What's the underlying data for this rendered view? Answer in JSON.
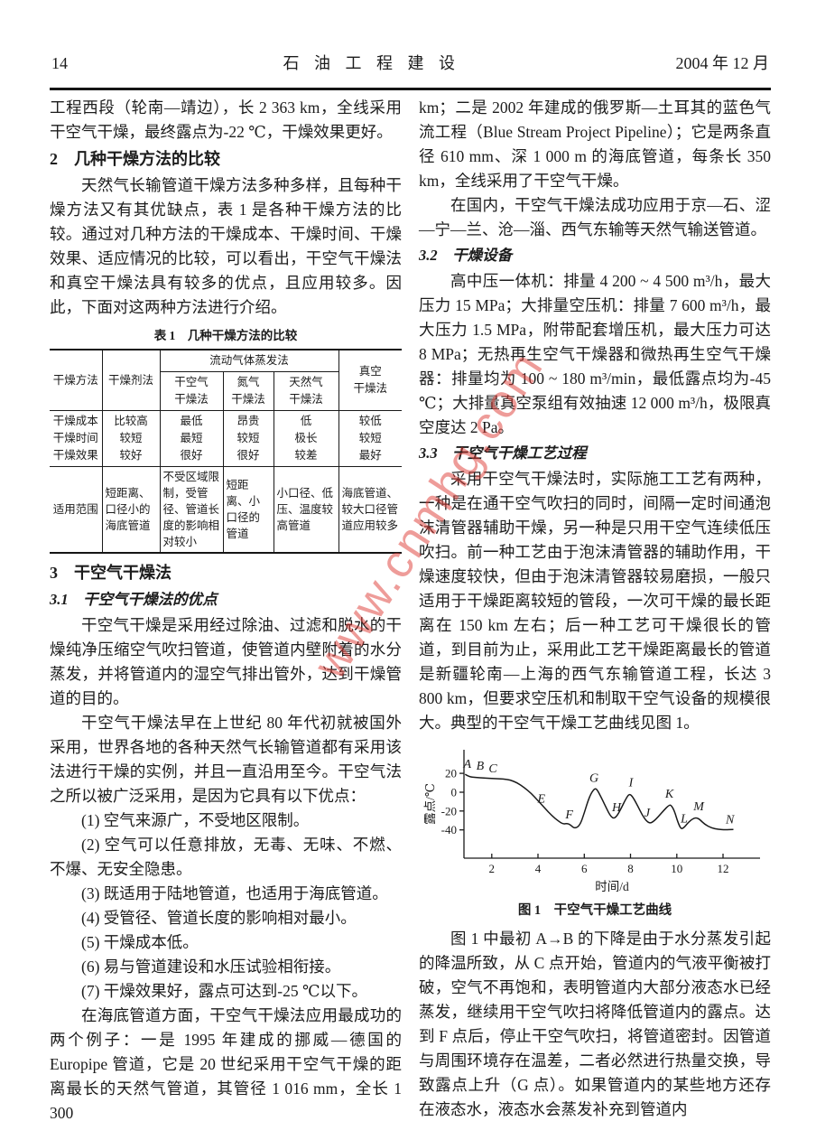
{
  "header": {
    "page_number": "14",
    "journal_title": "石 油 工 程 建 设",
    "issue_date": "2004 年 12 月"
  },
  "watermark": "www.cnmhg.com",
  "left_column": {
    "p_intro": "工程西段（轮南—靖边），长 2 363 km，全线采用干空气干燥，最终露点为-22 ℃，干燥效果更好。",
    "section2_heading": "2　几种干燥方法的比较",
    "p_section2": "天然气长输管道干燥方法多种多样，且每种干燥方法又有其优缺点，表 1 是各种干燥方法的比较。通过对几种方法的干燥成本、干燥时间、干燥效果、适应情况的比较，可以看出，干空气干燥法和真空干燥法具有较多的优点，且应用较多。因此，下面对这两种方法进行介绍。",
    "table": {
      "title": "表 1　几种干燥方法的比较",
      "method_header": "干燥方法",
      "desiccant_header": "干燥剂法",
      "group_header": "流动气体蒸发法",
      "sub_headers": [
        "干空气\n干燥法",
        "氮气\n干燥法",
        "天然气\n干燥法"
      ],
      "vacuum_header": "真空\n干燥法",
      "metric_rows": [
        {
          "label": "干燥成本",
          "values": [
            "比较高",
            "最低",
            "昂贵",
            "低",
            "较低"
          ]
        },
        {
          "label": "干燥时间",
          "values": [
            "较短",
            "最短",
            "较短",
            "极长",
            "较短"
          ]
        },
        {
          "label": "干燥效果",
          "values": [
            "较好",
            "很好",
            "很好",
            "较差",
            "最好"
          ]
        }
      ],
      "scope_row": {
        "label": "适用范围",
        "values": [
          "短距离、口径小的海底管道",
          "不受区域限制，受管径、管道长度的影响相对较小",
          "短距离、小口径的管道",
          "小口径、低压、温度较高管道",
          "海底管道、较大口径管道应用较多"
        ]
      }
    },
    "section3_heading": "3　干空气干燥法",
    "section31_heading": "3.1　干空气干燥法的优点",
    "p_31a": "干空气干燥是采用经过除油、过滤和脱水的干燥纯净压缩空气吹扫管道，使管道内壁附着的水分蒸发，并将管道内的湿空气排出管外，达到干燥管道的目的。",
    "p_31b": "干空气干燥法早在上世纪 80 年代初就被国外采用，世界各地的各种天然气长输管道都有采用该法进行干燥的实例，并且一直沿用至今。干空气法之所以被广泛采用，是因为它具有以下优点：",
    "advantages": [
      "(1) 空气来源广，不受地区限制。",
      "(2) 空气可以任意排放，无毒、无味、不燃、不爆、无安全隐患。",
      "(3) 既适用于陆地管道，也适用于海底管道。",
      "(4) 受管径、管道长度的影响相对最小。",
      "(5) 干燥成本低。",
      "(6) 易与管道建设和水压试验相衔接。",
      "(7) 干燥效果好，露点可达到-25 ℃以下。"
    ],
    "p_31c": "在海底管道方面，干空气干燥法应用最成功的两个例子：一是 1995 年建成的挪威—德国的 Europipe 管道，它是 20 世纪采用干空气干燥的距离最长的天然气管道，其管径 1 016 mm，全长 1 300"
  },
  "right_column": {
    "p_cont": "km；二是 2002 年建成的俄罗斯—土耳其的蓝色气流工程（Blue Stream Project Pipeline）；它是两条直径 610 mm、深 1 000 m 的海底管道，每条长 350 km，全线采用了干空气干燥。",
    "p_domestic": "在国内，干空气干燥法成功应用于京—石、涩—宁—兰、沧—淄、西气东输等天然气输送管道。",
    "section32_heading": "3.2　干燥设备",
    "p_equipment": "高中压一体机：排量 4 200 ~ 4 500 m³/h，最大压力 15 MPa；大排量空压机：排量 7 600 m³/h，最大压力 1.5 MPa，附带配套增压机，最大压力可达 8 MPa；无热再生空气干燥器和微热再生空气干燥器：排量均为 100 ~ 180 m³/min，最低露点均为-45 ℃；大排量真空泵组有效抽速 12 000 m³/h，极限真空度达 2 Pa。",
    "section33_heading": "3.3　干空气干燥工艺过程",
    "p_process": "采用干空气干燥法时，实际施工工艺有两种，一种是在通干空气吹扫的同时，间隔一定时间通泡沫清管器辅助干燥，另一种是只用干空气连续低压吹扫。前一种工艺由于泡沫清管器的辅助作用，干燥速度较快，但由于泡沫清管器较易磨损，一般只适用于干燥距离较短的管段，一次可干燥的最长距离在 150 km 左右；后一种工艺可干燥很长的管道，到目前为止，采用此工艺干燥距离最长的管道是新疆轮南—上海的西气东输管道工程，长达 3 800 km，但要求空压机和制取干空气设备的规模很大。典型的干空气干燥工艺曲线见图 1。",
    "p_figure_discussion": "图 1 中最初 A→B 的下降是由于水分蒸发引起的降温所致，从 C 点开始，管道内的气液平衡被打破，空气不再饱和，表明管道内大部分液态水已经蒸发，继续用干空气吹扫将降低管道内的露点。达到 F 点后，停止干空气吹扫，将管道密封。因管道与周围环境存在温差，二者必然进行热量交换，导致露点上升（G 点）。如果管道内的某些地方还存在液态水，液态水会蒸发补充到管道内"
  },
  "chart_data": {
    "type": "line",
    "title": "图 1　干空气干燥工艺曲线",
    "xlabel": "时间/d",
    "ylabel": "露点/℃",
    "xlim": [
      0.8,
      13.6
    ],
    "ylim": [
      -70,
      45
    ],
    "xticks": [
      2,
      4,
      6,
      8,
      10,
      12
    ],
    "yticks": [
      20,
      0,
      -20,
      -40
    ],
    "grid": false,
    "legend": "none",
    "series": [
      {
        "name": "露点曲线",
        "points": [
          [
            0.85,
            19
          ],
          [
            1.0,
            16.5
          ],
          [
            1.3,
            15.5
          ],
          [
            1.7,
            15
          ],
          [
            2.1,
            14.5
          ],
          [
            2.5,
            14
          ],
          [
            2.8,
            13
          ],
          [
            3.1,
            10
          ],
          [
            3.4,
            5
          ],
          [
            3.7,
            -1
          ],
          [
            4.0,
            -9
          ],
          [
            4.3,
            -17
          ],
          [
            4.6,
            -25
          ],
          [
            4.9,
            -31
          ],
          [
            5.1,
            -34
          ],
          [
            5.25,
            -33
          ],
          [
            5.4,
            -34.5
          ],
          [
            5.55,
            -38
          ],
          [
            5.7,
            -37.5
          ],
          [
            5.85,
            -33
          ],
          [
            6.0,
            -22
          ],
          [
            6.15,
            -10
          ],
          [
            6.3,
            -1
          ],
          [
            6.45,
            4
          ],
          [
            6.55,
            3
          ],
          [
            6.7,
            -4
          ],
          [
            6.9,
            -14
          ],
          [
            7.1,
            -24
          ],
          [
            7.25,
            -28
          ],
          [
            7.4,
            -26
          ],
          [
            7.6,
            -17
          ],
          [
            7.8,
            -7
          ],
          [
            7.95,
            -1.5
          ],
          [
            8.1,
            -5
          ],
          [
            8.3,
            -14
          ],
          [
            8.5,
            -24
          ],
          [
            8.7,
            -31
          ],
          [
            8.85,
            -33
          ],
          [
            9.0,
            -31
          ],
          [
            9.2,
            -26
          ],
          [
            9.45,
            -19
          ],
          [
            9.65,
            -14
          ],
          [
            9.75,
            -13.5
          ],
          [
            9.9,
            -20
          ],
          [
            10.05,
            -32
          ],
          [
            10.18,
            -39
          ],
          [
            10.3,
            -38
          ],
          [
            10.5,
            -32
          ],
          [
            10.7,
            -28
          ],
          [
            10.85,
            -27
          ],
          [
            11.0,
            -29
          ],
          [
            11.2,
            -34
          ],
          [
            11.5,
            -38
          ],
          [
            11.8,
            -39.5
          ],
          [
            12.1,
            -40
          ],
          [
            12.45,
            -39.5
          ]
        ]
      }
    ],
    "point_labels": [
      {
        "label": "A",
        "x": 0.95,
        "y": 26
      },
      {
        "label": "B",
        "x": 1.5,
        "y": 24
      },
      {
        "label": "C",
        "x": 2.05,
        "y": 21
      },
      {
        "label": "E",
        "x": 4.15,
        "y": -11
      },
      {
        "label": "F",
        "x": 5.35,
        "y": -28
      },
      {
        "label": "G",
        "x": 6.42,
        "y": 11
      },
      {
        "label": "H",
        "x": 7.4,
        "y": -20
      },
      {
        "label": "I",
        "x": 8.02,
        "y": 6
      },
      {
        "label": "J",
        "x": 8.72,
        "y": -26
      },
      {
        "label": "K",
        "x": 9.68,
        "y": -6
      },
      {
        "label": "L",
        "x": 10.32,
        "y": -32
      },
      {
        "label": "M",
        "x": 10.95,
        "y": -19
      },
      {
        "label": "N",
        "x": 12.3,
        "y": -33
      }
    ]
  }
}
